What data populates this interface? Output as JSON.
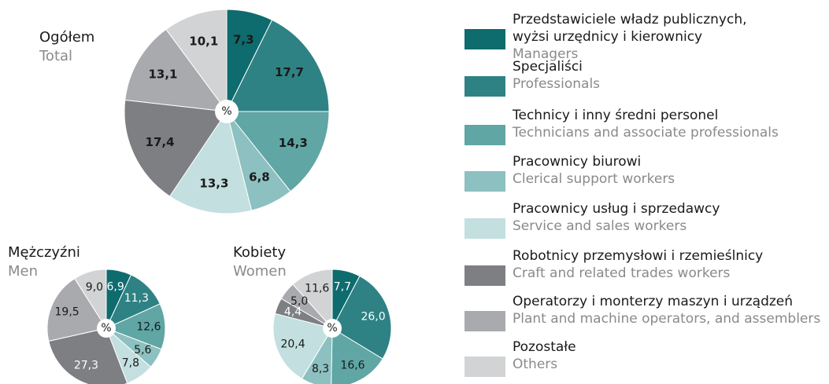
{
  "chart_data": [
    {
      "type": "pie",
      "title": "Ogółem",
      "subtitle": "Total",
      "center_label": "%",
      "values": [
        7.3,
        17.7,
        14.3,
        6.8,
        13.3,
        17.4,
        13.1,
        10.1
      ],
      "value_labels": [
        "7,3",
        "17,7",
        "14,3",
        "6,8",
        "13,3",
        "17,4",
        "13,1",
        "10,1"
      ]
    },
    {
      "type": "pie",
      "title": "Mężczyźni",
      "subtitle": "Men",
      "center_label": "%",
      "values": [
        6.9,
        11.3,
        12.6,
        5.6,
        7.8,
        27.3,
        19.5,
        9.0
      ],
      "value_labels": [
        "6,9",
        "11,3",
        "12,6",
        "5,6",
        "7,8",
        "27,3",
        "19,5",
        "9,0"
      ]
    },
    {
      "type": "pie",
      "title": "Kobiety",
      "subtitle": "Women",
      "center_label": "%",
      "values": [
        7.7,
        26.0,
        16.6,
        8.3,
        20.4,
        4.4,
        5.0,
        11.6
      ],
      "value_labels": [
        "7,7",
        "26,0",
        "16,6",
        "8,3",
        "20,4",
        "4,4",
        "5,0",
        "11,6"
      ]
    }
  ],
  "legend": {
    "categories": [
      [
        "Przedstawiciele władz publicznych,",
        "wyżsi urzędnicy i kierownicy"
      ],
      [
        "Specjaliści"
      ],
      [
        "Technicy i inny średni personel"
      ],
      [
        "Pracownicy biurowi"
      ],
      [
        "Pracownicy usług  i sprzedawcy"
      ],
      [
        "Robotnicy przemysłowi i rzemieślnicy"
      ],
      [
        "Operatorzy i monterzy maszyn i urządzeń"
      ],
      [
        "Pozostałe"
      ]
    ],
    "subtitles": [
      "Managers",
      "Professionals",
      "Technicians and associate professionals",
      "Clerical support workers",
      "Service and sales workers",
      "Craft and related trades workers",
      "Plant and machine operators, and assemblers",
      "Others"
    ],
    "colors": [
      "#0e6b6e",
      "#2e8284",
      "#5fa6a5",
      "#8dc0c0",
      "#c3dfe0",
      "#7d7f83",
      "#a8aaae",
      "#d2d3d4"
    ]
  }
}
